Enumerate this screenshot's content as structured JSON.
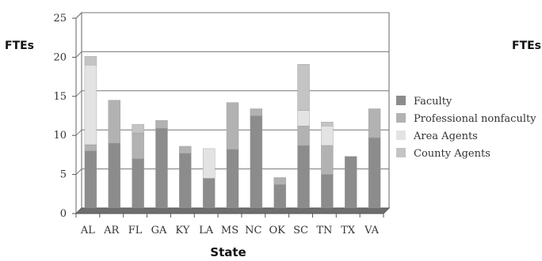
{
  "chart_data": {
    "type": "bar",
    "stacked": true,
    "ylabel": "FTEs",
    "ylabel_right_clipped": "FTEs",
    "xlabel": "State",
    "categories": [
      "AL",
      "AR",
      "FL",
      "GA",
      "KY",
      "LA",
      "MS",
      "NC",
      "OK",
      "SC",
      "TN",
      "TX",
      "VA"
    ],
    "ylim": [
      0,
      25
    ],
    "yticks": [
      0,
      5,
      10,
      15,
      20,
      25
    ],
    "grid": true,
    "legend_position": "right",
    "series": [
      {
        "name": "Faculty",
        "color": "#8c8c8c",
        "values": [
          7.3,
          8.3,
          6.3,
          10.2,
          7.0,
          3.8,
          7.5,
          11.8,
          3.0,
          8.0,
          4.3,
          6.6,
          9.0
        ]
      },
      {
        "name": "Professional nonfaculty",
        "color": "#b2b2b2",
        "values": [
          0.8,
          5.5,
          3.3,
          1.0,
          0.9,
          0.0,
          6.0,
          0.9,
          0.9,
          2.5,
          3.7,
          0.0,
          3.7
        ]
      },
      {
        "name": "Area Agents",
        "color": "#e3e3e3",
        "values": [
          10.2,
          0.0,
          0.0,
          0.0,
          0.0,
          3.8,
          0.0,
          0.0,
          0.0,
          2.0,
          2.5,
          0.0,
          0.0
        ]
      },
      {
        "name": "County Agents",
        "color": "#c4c4c4",
        "values": [
          1.1,
          0.0,
          1.1,
          0.0,
          0.0,
          0.0,
          0.0,
          0.0,
          0.0,
          5.9,
          0.5,
          0.0,
          0.0
        ]
      }
    ]
  }
}
